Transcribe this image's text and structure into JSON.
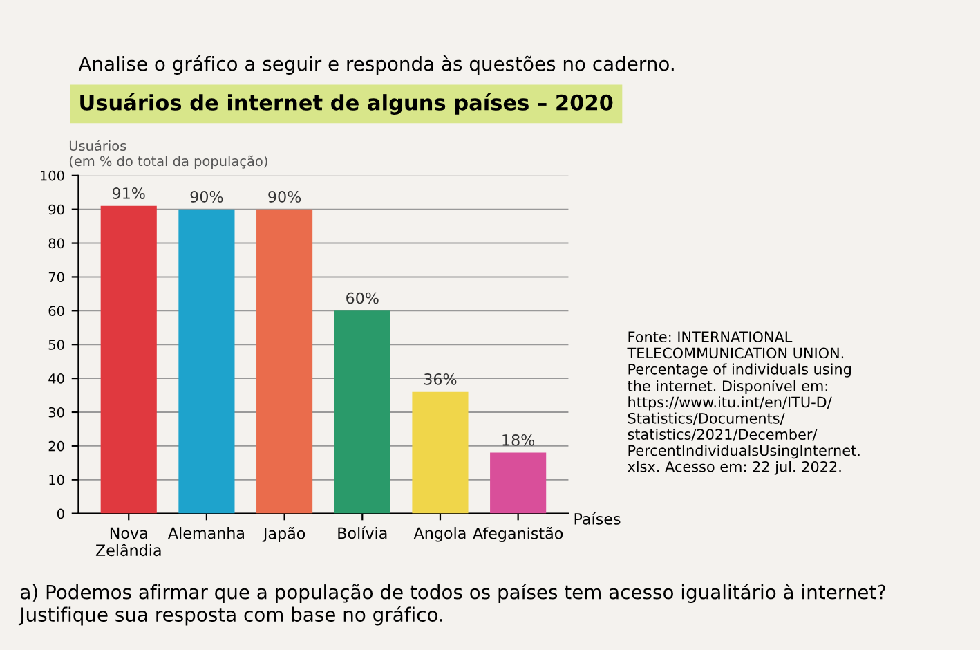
{
  "chart_data": {
    "type": "bar",
    "title": "Usuários de internet de alguns países – 2020",
    "ylabel": "Usuários\n(em % do total da população)",
    "xlabel": "Países",
    "categories": [
      "Nova\nZelândia",
      "Alemanha",
      "Japão",
      "Bolívia",
      "Angola",
      "Afeganistão"
    ],
    "values": [
      91,
      90,
      90,
      60,
      36,
      18
    ],
    "colors": [
      "#e0393f",
      "#1ea3cc",
      "#ea6c4c",
      "#2a9a6a",
      "#f0d64a",
      "#d94f9a"
    ],
    "value_labels": [
      "91%",
      "90%",
      "90%",
      "60%",
      "36%",
      "18%"
    ],
    "ylim": [
      0,
      100
    ],
    "yticks": [
      0,
      10,
      20,
      30,
      40,
      50,
      60,
      70,
      80,
      90,
      100
    ],
    "grid": "y",
    "annotations": [
      "Analise o gráfico a seguir e responda às questões no caderno.",
      "Fonte: INTERNATIONAL\nTELECOMMUNICATION UNION.\nPercentage of individuals using\nthe internet. Disponível em:\nhttps://www.itu.int/en/ITU-D/\nStatistics/Documents/\nstatistics/2021/December/\nPercentIndividualsUsingInternet.\nxlsx. Acesso em: 22 jul. 2022.",
      "a) Podemos afirmar que a população de todos os países tem acesso igualitário à internet? Justifique sua resposta com base no gráfico."
    ]
  }
}
